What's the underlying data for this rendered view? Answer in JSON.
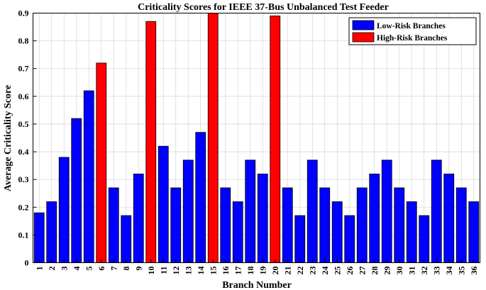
{
  "chart_data": {
    "type": "bar",
    "title": "Criticality Scores for IEEE 37-Bus Unbalanced Test Feeder",
    "xlabel": "Branch Number",
    "ylabel": "Average Criticality Score",
    "categories": [
      "1",
      "2",
      "3",
      "4",
      "5",
      "6",
      "7",
      "8",
      "9",
      "10",
      "11",
      "12",
      "13",
      "14",
      "15",
      "16",
      "17",
      "18",
      "19",
      "20",
      "21",
      "22",
      "23",
      "24",
      "25",
      "26",
      "27",
      "28",
      "29",
      "30",
      "31",
      "32",
      "33",
      "34",
      "35",
      "36"
    ],
    "values": [
      0.18,
      0.22,
      0.38,
      0.52,
      0.62,
      0.72,
      0.27,
      0.17,
      0.32,
      0.87,
      0.42,
      0.27,
      0.37,
      0.47,
      0.9,
      0.27,
      0.22,
      0.37,
      0.32,
      0.89,
      0.27,
      0.17,
      0.37,
      0.27,
      0.22,
      0.17,
      0.27,
      0.32,
      0.37,
      0.27,
      0.22,
      0.17,
      0.37,
      0.32,
      0.27,
      0.22
    ],
    "high_risk": [
      "6",
      "10",
      "15",
      "20"
    ],
    "ylim": [
      0,
      0.9
    ],
    "yticks": [
      "0",
      "0.1",
      "0.2",
      "0.3",
      "0.4",
      "0.5",
      "0.6",
      "0.7",
      "0.8",
      "0.9"
    ],
    "grid": true,
    "legend_position": "top-right",
    "legend": [
      {
        "name": "Low-Risk Branches",
        "color": "#0000ff"
      },
      {
        "name": "High-Risk Branches",
        "color": "#ff0000"
      }
    ]
  }
}
